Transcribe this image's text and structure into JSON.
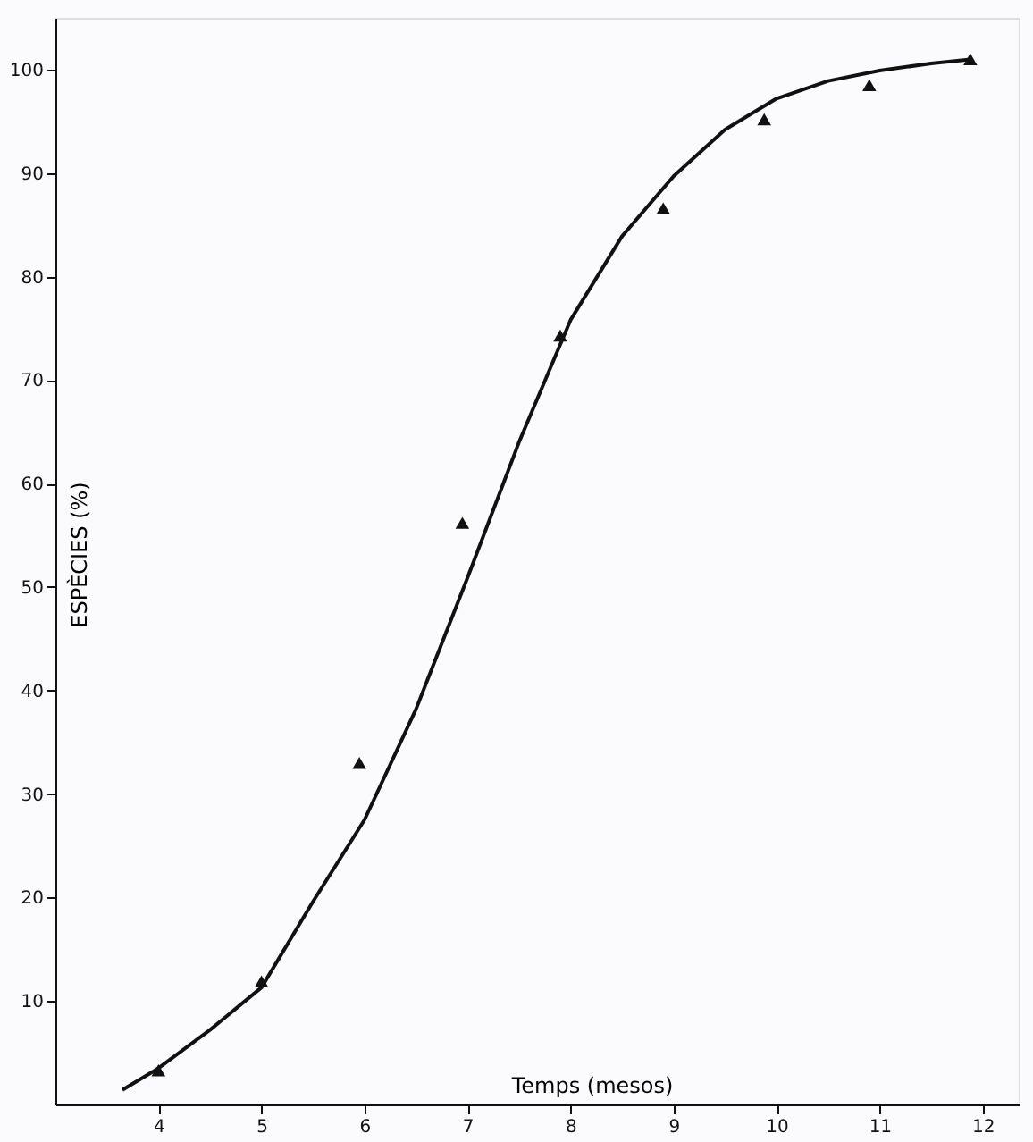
{
  "chart_data": {
    "type": "scatter",
    "xlabel": "Temps (mesos)",
    "ylabel": "ESPÈCIES (%)",
    "xlim": [
      3,
      12.35
    ],
    "ylim": [
      0,
      105
    ],
    "xticks": [
      4,
      5,
      6,
      7,
      8,
      9,
      10,
      11,
      12
    ],
    "yticks": [
      10,
      20,
      30,
      40,
      50,
      60,
      70,
      80,
      90,
      100
    ],
    "grid": false,
    "series": [
      {
        "color": "#111111",
        "marker": "triangle",
        "x": [
          4,
          5,
          5.95,
          6.95,
          7.9,
          8.9,
          9.88,
          10.9,
          11.88
        ],
        "values": [
          3.3,
          11.9,
          33,
          56.2,
          74.3,
          86.6,
          95.2,
          98.5,
          101
        ]
      },
      {
        "type": "line",
        "color": "#111111",
        "line_style": "solid",
        "marker": "none",
        "x": [
          3.65,
          4,
          4.5,
          5,
          5.5,
          6,
          6.5,
          7,
          7.5,
          8,
          8.5,
          9,
          9.5,
          10,
          10.5,
          11,
          11.5,
          11.9
        ],
        "values": [
          1.4,
          3.5,
          7.2,
          11.3,
          19.6,
          27.5,
          38.2,
          50.9,
          64,
          75.8,
          83.9,
          89.7,
          94.2,
          97.2,
          98.9,
          99.9,
          100.6,
          101
        ]
      }
    ]
  }
}
